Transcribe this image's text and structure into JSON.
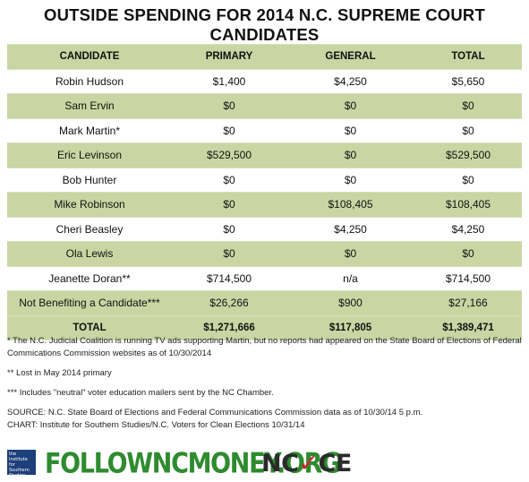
{
  "title": "OUTSIDE SPENDING FOR 2014 N.C. SUPREME COURT CANDIDATES",
  "table": {
    "headers": [
      "CANDIDATE",
      "PRIMARY",
      "GENERAL",
      "TOTAL"
    ],
    "rows": [
      [
        "Robin Hudson",
        "$1,400",
        "$4,250",
        "$5,650"
      ],
      [
        "Sam Ervin",
        "$0",
        "$0",
        "$0"
      ],
      [
        "Mark Martin*",
        "$0",
        "$0",
        "$0"
      ],
      [
        "Eric Levinson",
        "$529,500",
        "$0",
        "$529,500"
      ],
      [
        "Bob Hunter",
        "$0",
        "$0",
        "$0"
      ],
      [
        "Mike Robinson",
        "$0",
        "$108,405",
        "$108,405"
      ],
      [
        "Cheri Beasley",
        "$0",
        "$4,250",
        "$4,250"
      ],
      [
        "Ola Lewis",
        "$0",
        "$0",
        "$0"
      ],
      [
        "Jeanette Doran**",
        "$714,500",
        "n/a",
        "$714,500"
      ],
      [
        "Not Benefiting a Candidate***",
        "$26,266",
        "$900",
        "$27,166"
      ]
    ],
    "total": [
      "TOTAL",
      "$1,271,666",
      "$117,805",
      "$1,389,471"
    ],
    "shade_color": "#c9d6a3"
  },
  "notes": {
    "note1": "* The N.C. Judicial Coalition is running TV ads supporting Martin, but no reports had appeared on the State Board of Elections of Federal Commications Commission websites as of 10/30/2014",
    "note2": "** Lost in May 2014 primary",
    "note3": "*** Includes \"neutral\" voter education mailers sent by the NC Chamber.",
    "source": "SOURCE: N.C. State Board of Elections and Federal Communications Commission data as of 10/30/14 5 p.m.",
    "chart": "CHART: Institute for Southern Studies/N.C. Voters for Clean Elections 10/31/14"
  },
  "logos": {
    "iss_text": [
      "the",
      "Institute",
      "for",
      "Southern",
      "Studies"
    ],
    "followncmoney": "FOLLOWNCMONEY.ORG",
    "ncvce_left": "NC",
    "ncvce_check": "✓",
    "ncvce_right": "CE"
  }
}
